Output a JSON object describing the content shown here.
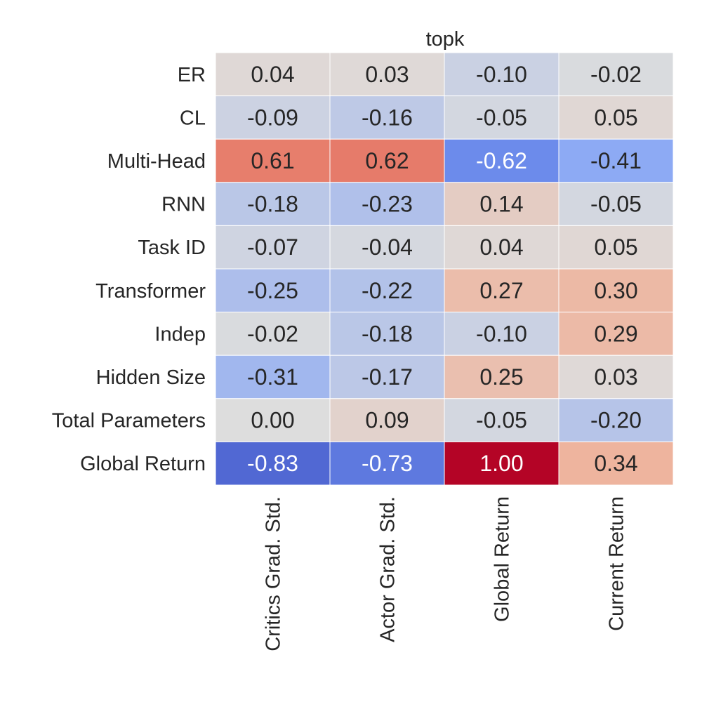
{
  "chart_data": {
    "type": "heatmap",
    "title": "topk",
    "rows": [
      "ER",
      "CL",
      "Multi-Head",
      "RNN",
      "Task ID",
      "Transformer",
      "Indep",
      "Hidden Size",
      "Total Parameters",
      "Global Return"
    ],
    "columns": [
      "Critics Grad. Std.",
      "Actor Grad. Std.",
      "Global Return",
      "Current Return"
    ],
    "values": [
      [
        0.04,
        0.03,
        -0.1,
        -0.02
      ],
      [
        -0.09,
        -0.16,
        -0.05,
        0.05
      ],
      [
        0.61,
        0.62,
        -0.62,
        -0.41
      ],
      [
        -0.18,
        -0.23,
        0.14,
        -0.05
      ],
      [
        -0.07,
        -0.04,
        0.04,
        0.05
      ],
      [
        -0.25,
        -0.22,
        0.27,
        0.3
      ],
      [
        -0.02,
        -0.18,
        -0.1,
        0.29
      ],
      [
        -0.31,
        -0.17,
        0.25,
        0.03
      ],
      [
        0.0,
        0.09,
        -0.05,
        -0.2
      ],
      [
        -0.83,
        -0.73,
        1.0,
        0.34
      ]
    ],
    "colormap": "coolwarm",
    "vmin": -1,
    "vmax": 1,
    "colorbar": false
  }
}
